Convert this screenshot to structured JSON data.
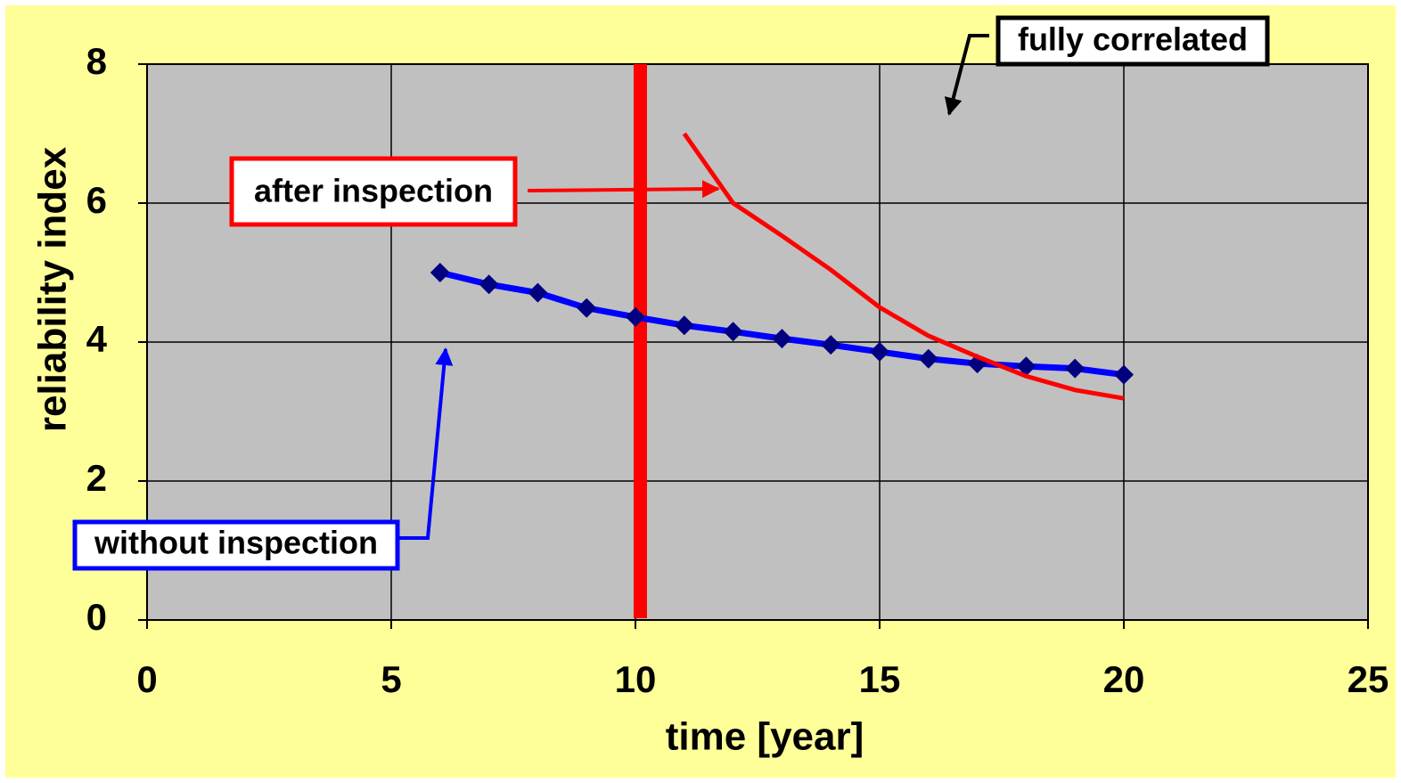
{
  "chart_data": {
    "type": "line",
    "xlabel": "time [year]",
    "ylabel": "reliability index",
    "xlim": [
      0,
      25
    ],
    "xticks": [
      0,
      5,
      10,
      15,
      20,
      25
    ],
    "ylim": [
      0,
      8
    ],
    "yticks": [
      0,
      2,
      4,
      6,
      8
    ],
    "grid": true,
    "series": [
      {
        "name": "without inspection",
        "color": "#0000ff",
        "marker_color": "#000080",
        "x": [
          6,
          7,
          8,
          9,
          10,
          11,
          12,
          13,
          14,
          15,
          16,
          17,
          18,
          19,
          20
        ],
        "values": [
          5.0,
          4.83,
          4.71,
          4.49,
          4.36,
          4.24,
          4.15,
          4.05,
          3.96,
          3.86,
          3.76,
          3.69,
          3.65,
          3.62,
          3.53
        ]
      },
      {
        "name": "after inspection",
        "color": "#ff0000",
        "x": [
          11,
          12,
          13,
          14,
          15,
          16,
          17,
          18,
          19,
          20
        ],
        "values": [
          7.0,
          6.0,
          5.53,
          5.04,
          4.5,
          4.09,
          3.79,
          3.51,
          3.31,
          3.19
        ]
      }
    ],
    "vline": {
      "x": 10.1,
      "color": "#ff0000"
    },
    "annotations": [
      {
        "text": "fully correlated",
        "color": "#000000"
      },
      {
        "text": "after inspection",
        "color": "#ff0000"
      },
      {
        "text": "without inspection",
        "color": "#0000ff"
      }
    ]
  }
}
